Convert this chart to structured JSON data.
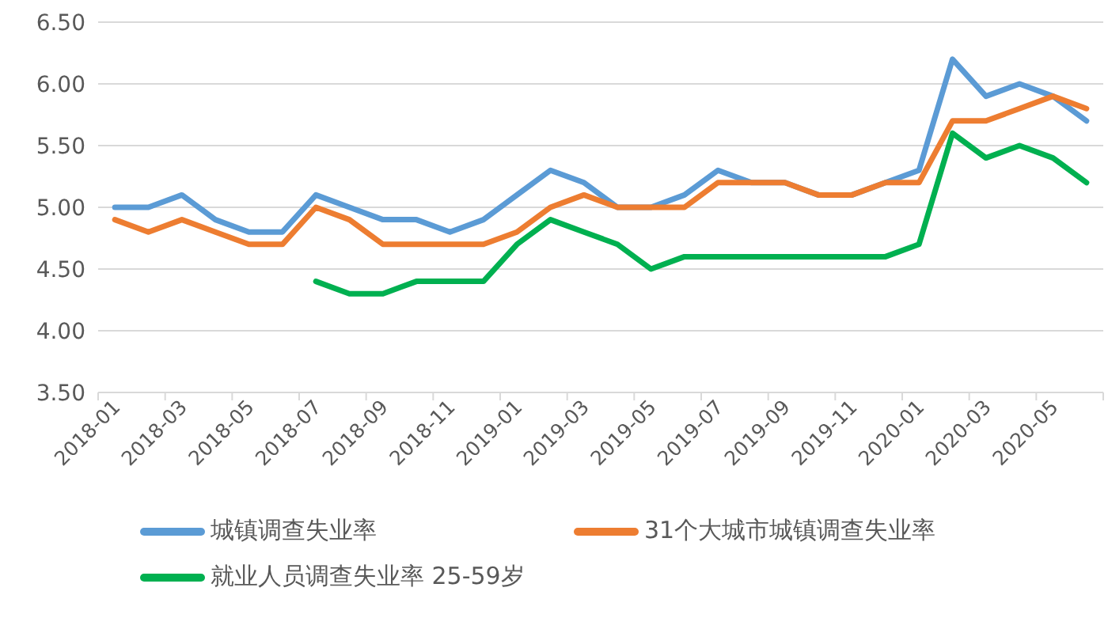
{
  "chart_data": {
    "type": "line",
    "categories": [
      "2018-01",
      null,
      "2018-03",
      null,
      "2018-05",
      null,
      "2018-07",
      null,
      "2018-09",
      null,
      "2018-11",
      null,
      "2019-01",
      null,
      "2019-03",
      null,
      "2019-05",
      null,
      "2019-07",
      null,
      "2019-09",
      null,
      "2019-11",
      null,
      "2020-01",
      null,
      "2020-03",
      null,
      "2020-05",
      null
    ],
    "series": [
      {
        "name": "城镇调查失业率",
        "color": "#5b9bd5",
        "values": [
          5.0,
          5.0,
          5.1,
          4.9,
          4.8,
          4.8,
          5.1,
          5.0,
          4.9,
          4.9,
          4.8,
          4.9,
          5.1,
          5.3,
          5.2,
          5.0,
          5.0,
          5.1,
          5.3,
          5.2,
          5.2,
          5.1,
          5.1,
          5.2,
          5.3,
          6.2,
          5.9,
          6.0,
          5.9,
          5.7
        ]
      },
      {
        "name": "31个大城市城镇调查失业率",
        "color": "#ed7d31",
        "values": [
          4.9,
          4.8,
          4.9,
          4.8,
          4.7,
          4.7,
          5.0,
          4.9,
          4.7,
          4.7,
          4.7,
          4.7,
          4.8,
          5.0,
          5.1,
          5.0,
          5.0,
          5.0,
          5.2,
          5.2,
          5.2,
          5.1,
          5.1,
          5.2,
          5.2,
          5.7,
          5.7,
          5.8,
          5.9,
          5.8
        ]
      },
      {
        "name": "就业人员调查失业率 25-59岁",
        "color": "#00b050",
        "values": [
          null,
          null,
          null,
          null,
          null,
          null,
          4.4,
          4.3,
          4.3,
          4.4,
          4.4,
          4.4,
          4.7,
          4.9,
          4.8,
          4.7,
          4.5,
          4.6,
          4.6,
          4.6,
          4.6,
          4.6,
          4.6,
          4.6,
          4.7,
          5.6,
          5.4,
          5.5,
          5.4,
          5.2
        ]
      }
    ],
    "ylim": [
      3.5,
      6.5
    ],
    "yticks": [
      {
        "value": 3.5,
        "label": "3.50"
      },
      {
        "value": 4.0,
        "label": "4.00"
      },
      {
        "value": 4.5,
        "label": "4.50"
      },
      {
        "value": 5.0,
        "label": "5.00"
      },
      {
        "value": 5.5,
        "label": "5.50"
      },
      {
        "value": 6.0,
        "label": "6.00"
      },
      {
        "value": 6.5,
        "label": "6.50"
      }
    ],
    "grid": "y",
    "legend": "bottom",
    "marker": "none",
    "line_style": "solid"
  }
}
